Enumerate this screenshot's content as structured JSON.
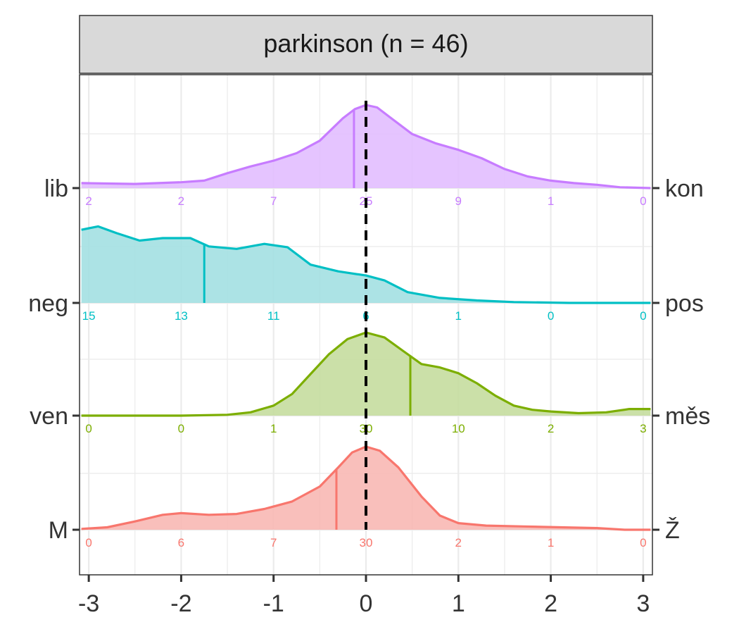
{
  "chart_data": {
    "type": "area",
    "title": "parkinson (n = 46)",
    "xlim": [
      -3.1,
      3.1
    ],
    "x_ticks": [
      -3,
      -2,
      -1,
      0,
      1,
      2,
      3
    ],
    "x_tick_labels": [
      "-3",
      "-2",
      "-1",
      "0",
      "1",
      "2",
      "3"
    ],
    "xlabel": "",
    "ylabel": "",
    "grid": true,
    "reference_line_x": 0,
    "count_positions": [
      -3,
      -2,
      -1,
      0,
      1,
      2,
      3
    ],
    "series": [
      {
        "left_label": "lib",
        "right_label": "kon",
        "color": "#C77CFF",
        "fill": "#E2BEFF",
        "median": -0.13,
        "counts": [
          2,
          2,
          7,
          25,
          9,
          1,
          0
        ],
        "density": [
          [
            -3.08,
            0.06
          ],
          [
            -2.5,
            0.05
          ],
          [
            -2,
            0.07
          ],
          [
            -1.75,
            0.09
          ],
          [
            -1.5,
            0.18
          ],
          [
            -1.25,
            0.26
          ],
          [
            -1,
            0.33
          ],
          [
            -0.75,
            0.42
          ],
          [
            -0.5,
            0.57
          ],
          [
            -0.25,
            0.84
          ],
          [
            -0.12,
            0.95
          ],
          [
            0,
            1.0
          ],
          [
            0.12,
            0.97
          ],
          [
            0.25,
            0.86
          ],
          [
            0.5,
            0.65
          ],
          [
            0.75,
            0.54
          ],
          [
            1,
            0.46
          ],
          [
            1.25,
            0.36
          ],
          [
            1.5,
            0.23
          ],
          [
            1.75,
            0.14
          ],
          [
            2,
            0.09
          ],
          [
            2.25,
            0.06
          ],
          [
            2.5,
            0.04
          ],
          [
            2.75,
            0.01
          ],
          [
            3.08,
            0.0
          ]
        ]
      },
      {
        "left_label": "neg",
        "right_label": "pos",
        "color": "#00BFC4",
        "fill": "#A3E0E2",
        "median": -1.75,
        "counts": [
          15,
          13,
          11,
          6,
          1,
          0,
          0
        ],
        "density": [
          [
            -3.08,
            0.88
          ],
          [
            -2.9,
            0.92
          ],
          [
            -2.7,
            0.84
          ],
          [
            -2.45,
            0.75
          ],
          [
            -2.2,
            0.78
          ],
          [
            -1.9,
            0.78
          ],
          [
            -1.7,
            0.68
          ],
          [
            -1.4,
            0.65
          ],
          [
            -1.1,
            0.71
          ],
          [
            -0.85,
            0.67
          ],
          [
            -0.6,
            0.46
          ],
          [
            -0.3,
            0.38
          ],
          [
            0,
            0.33
          ],
          [
            0.2,
            0.27
          ],
          [
            0.45,
            0.13
          ],
          [
            0.8,
            0.06
          ],
          [
            1.2,
            0.03
          ],
          [
            1.6,
            0.01
          ],
          [
            2.2,
            0.0
          ],
          [
            3.08,
            0.0
          ]
        ]
      },
      {
        "left_label": "ven",
        "right_label": "měs",
        "color": "#7CAE00",
        "fill": "#C5DD9F",
        "median": 0.48,
        "counts": [
          0,
          0,
          1,
          30,
          10,
          2,
          3
        ],
        "density": [
          [
            -3.08,
            0.0
          ],
          [
            -2,
            0.0
          ],
          [
            -1.5,
            0.01
          ],
          [
            -1.25,
            0.04
          ],
          [
            -1,
            0.12
          ],
          [
            -0.8,
            0.26
          ],
          [
            -0.6,
            0.5
          ],
          [
            -0.4,
            0.74
          ],
          [
            -0.2,
            0.92
          ],
          [
            0,
            1.0
          ],
          [
            0.2,
            0.94
          ],
          [
            0.4,
            0.78
          ],
          [
            0.6,
            0.62
          ],
          [
            0.8,
            0.58
          ],
          [
            1.0,
            0.51
          ],
          [
            1.2,
            0.39
          ],
          [
            1.4,
            0.24
          ],
          [
            1.6,
            0.12
          ],
          [
            1.8,
            0.07
          ],
          [
            2.0,
            0.05
          ],
          [
            2.3,
            0.03
          ],
          [
            2.6,
            0.04
          ],
          [
            2.85,
            0.08
          ],
          [
            3.08,
            0.08
          ]
        ]
      },
      {
        "left_label": "M",
        "right_label": "Ž",
        "color": "#F8766D",
        "fill": "#F8B8B4",
        "median": -0.32,
        "counts": [
          0,
          6,
          7,
          30,
          2,
          1,
          0
        ],
        "density": [
          [
            -3.08,
            0.01
          ],
          [
            -2.8,
            0.03
          ],
          [
            -2.5,
            0.1
          ],
          [
            -2.2,
            0.18
          ],
          [
            -2,
            0.2
          ],
          [
            -1.7,
            0.18
          ],
          [
            -1.4,
            0.19
          ],
          [
            -1.1,
            0.25
          ],
          [
            -0.8,
            0.34
          ],
          [
            -0.5,
            0.52
          ],
          [
            -0.3,
            0.75
          ],
          [
            -0.15,
            0.93
          ],
          [
            0,
            1.0
          ],
          [
            0.15,
            0.95
          ],
          [
            0.35,
            0.75
          ],
          [
            0.6,
            0.4
          ],
          [
            0.8,
            0.17
          ],
          [
            1.0,
            0.08
          ],
          [
            1.3,
            0.05
          ],
          [
            1.7,
            0.04
          ],
          [
            2.1,
            0.03
          ],
          [
            2.5,
            0.02
          ],
          [
            2.8,
            0.0
          ],
          [
            3.08,
            0.0
          ]
        ]
      }
    ]
  }
}
